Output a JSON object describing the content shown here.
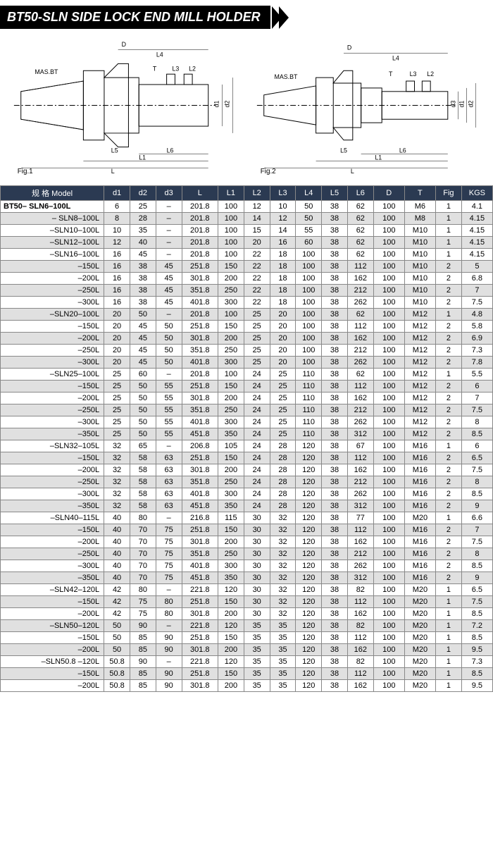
{
  "header": {
    "title": "BT50-SLN SIDE LOCK END MILL HOLDER"
  },
  "diagrams": {
    "fig1_label": "Fig.1",
    "fig2_label": "Fig.2",
    "mas_bt": "MAS.BT",
    "dims": {
      "L": "L",
      "L1": "L1",
      "L2": "L2",
      "L3": "L3",
      "L4": "L4",
      "L5": "L5",
      "L6": "L6",
      "D": "D",
      "T": "T",
      "d1": "d1",
      "d2": "d2",
      "d3": "d3"
    }
  },
  "table": {
    "columns": [
      "规 格 Model",
      "d1",
      "d2",
      "d3",
      "L",
      "L1",
      "L2",
      "L3",
      "L4",
      "L5",
      "L6",
      "D",
      "T",
      "Fig",
      "KGS"
    ],
    "col_widths_pct": [
      20,
      5,
      5,
      5,
      7,
      5,
      5,
      5,
      5,
      5,
      5,
      6,
      6,
      5,
      6
    ],
    "header_bg": "#2b3a52",
    "header_fg": "#ffffff",
    "row_bg_odd": "#ffffff",
    "row_bg_even": "#e0e0e0",
    "border_color": "#888888",
    "rows": [
      [
        "BT50– SLN6–100L",
        "6",
        "25",
        "–",
        "201.8",
        "100",
        "12",
        "10",
        "50",
        "38",
        "62",
        "100",
        "M6",
        "1",
        "4.1"
      ],
      [
        "– SLN8–100L",
        "8",
        "28",
        "–",
        "201.8",
        "100",
        "14",
        "12",
        "50",
        "38",
        "62",
        "100",
        "M8",
        "1",
        "4.15"
      ],
      [
        "–SLN10–100L",
        "10",
        "35",
        "–",
        "201.8",
        "100",
        "15",
        "14",
        "55",
        "38",
        "62",
        "100",
        "M10",
        "1",
        "4.15"
      ],
      [
        "–SLN12–100L",
        "12",
        "40",
        "–",
        "201.8",
        "100",
        "20",
        "16",
        "60",
        "38",
        "62",
        "100",
        "M10",
        "1",
        "4.15"
      ],
      [
        "–SLN16–100L",
        "16",
        "45",
        "–",
        "201.8",
        "100",
        "22",
        "18",
        "100",
        "38",
        "62",
        "100",
        "M10",
        "1",
        "4.15"
      ],
      [
        "–150L",
        "16",
        "38",
        "45",
        "251.8",
        "150",
        "22",
        "18",
        "100",
        "38",
        "112",
        "100",
        "M10",
        "2",
        "5"
      ],
      [
        "–200L",
        "16",
        "38",
        "45",
        "301.8",
        "200",
        "22",
        "18",
        "100",
        "38",
        "162",
        "100",
        "M10",
        "2",
        "6.8"
      ],
      [
        "–250L",
        "16",
        "38",
        "45",
        "351.8",
        "250",
        "22",
        "18",
        "100",
        "38",
        "212",
        "100",
        "M10",
        "2",
        "7"
      ],
      [
        "–300L",
        "16",
        "38",
        "45",
        "401.8",
        "300",
        "22",
        "18",
        "100",
        "38",
        "262",
        "100",
        "M10",
        "2",
        "7.5"
      ],
      [
        "–SLN20–100L",
        "20",
        "50",
        "–",
        "201.8",
        "100",
        "25",
        "20",
        "100",
        "38",
        "62",
        "100",
        "M12",
        "1",
        "4.8"
      ],
      [
        "–150L",
        "20",
        "45",
        "50",
        "251.8",
        "150",
        "25",
        "20",
        "100",
        "38",
        "112",
        "100",
        "M12",
        "2",
        "5.8"
      ],
      [
        "–200L",
        "20",
        "45",
        "50",
        "301.8",
        "200",
        "25",
        "20",
        "100",
        "38",
        "162",
        "100",
        "M12",
        "2",
        "6.9"
      ],
      [
        "–250L",
        "20",
        "45",
        "50",
        "351.8",
        "250",
        "25",
        "20",
        "100",
        "38",
        "212",
        "100",
        "M12",
        "2",
        "7.3"
      ],
      [
        "–300L",
        "20",
        "45",
        "50",
        "401.8",
        "300",
        "25",
        "20",
        "100",
        "38",
        "262",
        "100",
        "M12",
        "2",
        "7.8"
      ],
      [
        "–SLN25–100L",
        "25",
        "60",
        "–",
        "201.8",
        "100",
        "24",
        "25",
        "110",
        "38",
        "62",
        "100",
        "M12",
        "1",
        "5.5"
      ],
      [
        "–150L",
        "25",
        "50",
        "55",
        "251.8",
        "150",
        "24",
        "25",
        "110",
        "38",
        "112",
        "100",
        "M12",
        "2",
        "6"
      ],
      [
        "–200L",
        "25",
        "50",
        "55",
        "301.8",
        "200",
        "24",
        "25",
        "110",
        "38",
        "162",
        "100",
        "M12",
        "2",
        "7"
      ],
      [
        "–250L",
        "25",
        "50",
        "55",
        "351.8",
        "250",
        "24",
        "25",
        "110",
        "38",
        "212",
        "100",
        "M12",
        "2",
        "7.5"
      ],
      [
        "–300L",
        "25",
        "50",
        "55",
        "401.8",
        "300",
        "24",
        "25",
        "110",
        "38",
        "262",
        "100",
        "M12",
        "2",
        "8"
      ],
      [
        "–350L",
        "25",
        "50",
        "55",
        "451.8",
        "350",
        "24",
        "25",
        "110",
        "38",
        "312",
        "100",
        "M12",
        "2",
        "8.5"
      ],
      [
        "–SLN32–105L",
        "32",
        "65",
        "–",
        "206.8",
        "105",
        "24",
        "28",
        "120",
        "38",
        "67",
        "100",
        "M16",
        "1",
        "6"
      ],
      [
        "–150L",
        "32",
        "58",
        "63",
        "251.8",
        "150",
        "24",
        "28",
        "120",
        "38",
        "112",
        "100",
        "M16",
        "2",
        "6.5"
      ],
      [
        "–200L",
        "32",
        "58",
        "63",
        "301.8",
        "200",
        "24",
        "28",
        "120",
        "38",
        "162",
        "100",
        "M16",
        "2",
        "7.5"
      ],
      [
        "–250L",
        "32",
        "58",
        "63",
        "351.8",
        "250",
        "24",
        "28",
        "120",
        "38",
        "212",
        "100",
        "M16",
        "2",
        "8"
      ],
      [
        "–300L",
        "32",
        "58",
        "63",
        "401.8",
        "300",
        "24",
        "28",
        "120",
        "38",
        "262",
        "100",
        "M16",
        "2",
        "8.5"
      ],
      [
        "–350L",
        "32",
        "58",
        "63",
        "451.8",
        "350",
        "24",
        "28",
        "120",
        "38",
        "312",
        "100",
        "M16",
        "2",
        "9"
      ],
      [
        "–SLN40–115L",
        "40",
        "80",
        "–",
        "216.8",
        "115",
        "30",
        "32",
        "120",
        "38",
        "77",
        "100",
        "M20",
        "1",
        "6.6"
      ],
      [
        "–150L",
        "40",
        "70",
        "75",
        "251.8",
        "150",
        "30",
        "32",
        "120",
        "38",
        "112",
        "100",
        "M16",
        "2",
        "7"
      ],
      [
        "–200L",
        "40",
        "70",
        "75",
        "301.8",
        "200",
        "30",
        "32",
        "120",
        "38",
        "162",
        "100",
        "M16",
        "2",
        "7.5"
      ],
      [
        "–250L",
        "40",
        "70",
        "75",
        "351.8",
        "250",
        "30",
        "32",
        "120",
        "38",
        "212",
        "100",
        "M16",
        "2",
        "8"
      ],
      [
        "–300L",
        "40",
        "70",
        "75",
        "401.8",
        "300",
        "30",
        "32",
        "120",
        "38",
        "262",
        "100",
        "M16",
        "2",
        "8.5"
      ],
      [
        "–350L",
        "40",
        "70",
        "75",
        "451.8",
        "350",
        "30",
        "32",
        "120",
        "38",
        "312",
        "100",
        "M16",
        "2",
        "9"
      ],
      [
        "–SLN42–120L",
        "42",
        "80",
        "–",
        "221.8",
        "120",
        "30",
        "32",
        "120",
        "38",
        "82",
        "100",
        "M20",
        "1",
        "6.5"
      ],
      [
        "–150L",
        "42",
        "75",
        "80",
        "251.8",
        "150",
        "30",
        "32",
        "120",
        "38",
        "112",
        "100",
        "M20",
        "1",
        "7.5"
      ],
      [
        "–200L",
        "42",
        "75",
        "80",
        "301.8",
        "200",
        "30",
        "32",
        "120",
        "38",
        "162",
        "100",
        "M20",
        "1",
        "8.5"
      ],
      [
        "–SLN50–120L",
        "50",
        "90",
        "–",
        "221.8",
        "120",
        "35",
        "35",
        "120",
        "38",
        "82",
        "100",
        "M20",
        "1",
        "7.2"
      ],
      [
        "–150L",
        "50",
        "85",
        "90",
        "251.8",
        "150",
        "35",
        "35",
        "120",
        "38",
        "112",
        "100",
        "M20",
        "1",
        "8.5"
      ],
      [
        "–200L",
        "50",
        "85",
        "90",
        "301.8",
        "200",
        "35",
        "35",
        "120",
        "38",
        "162",
        "100",
        "M20",
        "1",
        "9.5"
      ],
      [
        "–SLN50.8 –120L",
        "50.8",
        "90",
        "–",
        "221.8",
        "120",
        "35",
        "35",
        "120",
        "38",
        "82",
        "100",
        "M20",
        "1",
        "7.3"
      ],
      [
        "–150L",
        "50.8",
        "85",
        "90",
        "251.8",
        "150",
        "35",
        "35",
        "120",
        "38",
        "112",
        "100",
        "M20",
        "1",
        "8.5"
      ],
      [
        "–200L",
        "50.8",
        "85",
        "90",
        "301.8",
        "200",
        "35",
        "35",
        "120",
        "38",
        "162",
        "100",
        "M20",
        "1",
        "9.5"
      ]
    ]
  }
}
